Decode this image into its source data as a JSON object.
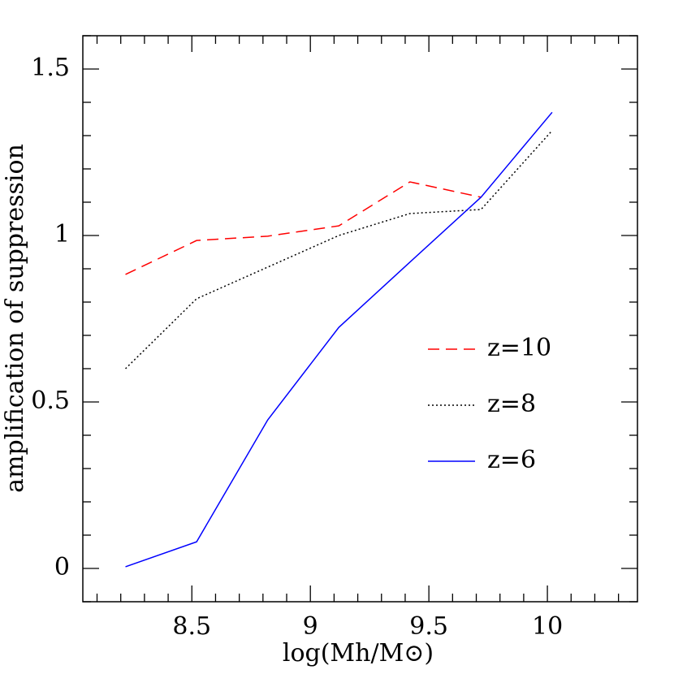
{
  "chart_data": {
    "type": "line",
    "xlabel": "log(Mh/M⊙)",
    "ylabel": "amplification of suppression",
    "x": [
      8.22,
      8.52,
      8.82,
      9.12,
      9.42,
      9.72,
      10.02
    ],
    "series": [
      {
        "name": "z=10",
        "color": "#ff0000",
        "dash": "dashed",
        "values": [
          0.883,
          0.985,
          0.998,
          1.029,
          1.161,
          1.115,
          null
        ]
      },
      {
        "name": "z=8",
        "color": "#000000",
        "dash": "dotted",
        "values": [
          0.6,
          0.81,
          0.905,
          1.0,
          1.066,
          1.078,
          1.315
        ]
      },
      {
        "name": "z=6",
        "color": "#0000ff",
        "dash": "solid",
        "values": [
          0.005,
          0.08,
          0.446,
          0.724,
          0.92,
          1.115,
          1.37
        ]
      }
    ],
    "xlim": [
      8.04,
      10.38
    ],
    "ylim": [
      -0.1,
      1.6
    ],
    "xticks": [
      8.5,
      9,
      9.5,
      10
    ],
    "yticks": [
      0,
      0.5,
      1,
      1.5
    ],
    "x_minor_ticks": [
      8.1,
      8.2,
      8.3,
      8.4,
      8.6,
      8.7,
      8.8,
      8.9,
      9.1,
      9.2,
      9.3,
      9.4,
      9.6,
      9.7,
      9.8,
      9.9,
      10.1,
      10.2,
      10.3
    ],
    "y_minor_ticks": [
      -0.1,
      0.1,
      0.2,
      0.3,
      0.4,
      0.6,
      0.7,
      0.8,
      0.9,
      1.1,
      1.2,
      1.3,
      1.4,
      1.6
    ],
    "legend": "right"
  }
}
